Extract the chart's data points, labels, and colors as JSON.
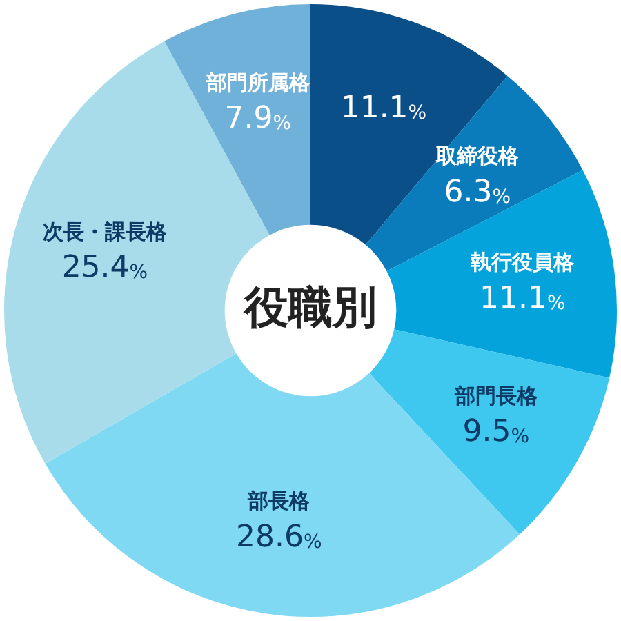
{
  "chart_data": {
    "type": "donut",
    "title": "役職別",
    "categories": [
      null,
      "取締役格",
      "執行役員格",
      "部門長格",
      "部長格",
      "次長・課長格",
      "部門所属格"
    ],
    "values": [
      11.1,
      6.3,
      11.1,
      9.5,
      28.6,
      25.4,
      7.9
    ],
    "colors": [
      "#0b4f88",
      "#0a7bbb",
      "#04a3dc",
      "#3fc8ef",
      "#7fd9f3",
      "#a9dcea",
      "#6fb1d9"
    ],
    "value_labels": [
      "11.1%",
      "6.3%",
      "11.1%",
      "9.5%",
      "28.6%",
      "25.4%",
      "7.9%"
    ],
    "legend": false
  }
}
